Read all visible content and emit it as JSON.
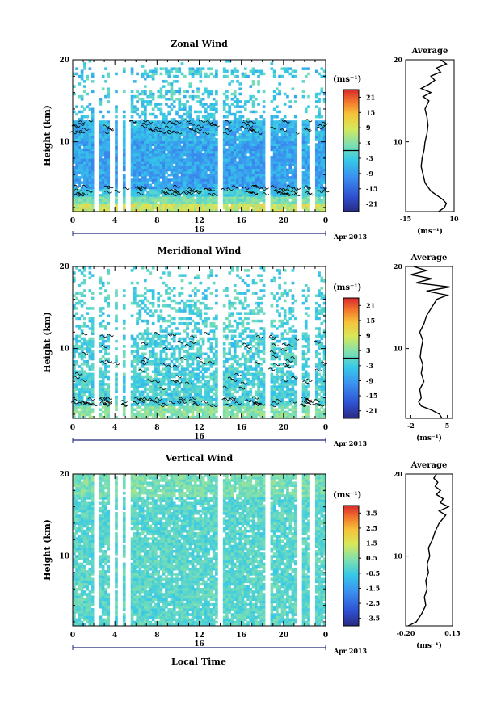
{
  "figure": {
    "xlabel": "Local Time",
    "date_label": "Apr 2013",
    "day_label": "16",
    "colorbar_unit": "(ms⁻¹)",
    "avg_title": "Average",
    "avg_xlabel": "(ms⁻¹)"
  },
  "chart_data": [
    {
      "type": "heatmap",
      "title": "Zonal Wind",
      "ylabel": "Height (km)",
      "xlabel": "",
      "x_range": [
        0,
        24
      ],
      "x_ticks": [
        "0",
        "4",
        "8",
        "12",
        "16",
        "20",
        "0"
      ],
      "y_range": [
        1.5,
        20
      ],
      "y_ticks": [
        "10",
        "20"
      ],
      "colorbar": {
        "range": [
          -24,
          24
        ],
        "ticks": [
          "21",
          "15",
          "9",
          "3",
          "-3",
          "-9",
          "-15",
          "-21"
        ],
        "zero_line": true
      },
      "field_description": "westward (negative) winds -6 to -12 m/s between 5 and 12 km, positive near surface, sparse coverage above 16 km",
      "data_gaps_hours": [
        2.3,
        3.8,
        4.5,
        5.3,
        14.0,
        18.5,
        21.5,
        22.8
      ],
      "average_profile": {
        "title": "Average",
        "xlim": [
          -15,
          10
        ],
        "x_ticks": [
          "-15",
          "10"
        ],
        "y_ticks": [
          "10",
          "20"
        ],
        "height_km": [
          1.5,
          2,
          2.5,
          3,
          3.5,
          4,
          5,
          6,
          7,
          8,
          9,
          10,
          11,
          12,
          13,
          14,
          15,
          15.5,
          16,
          16.5,
          17,
          17.5,
          18,
          18.5,
          19,
          19.5,
          20
        ],
        "speed": [
          2,
          5,
          6,
          4,
          1,
          -2,
          -5,
          -6,
          -7,
          -6.5,
          -5.5,
          -5,
          -4,
          -3.5,
          -4,
          -5,
          -3,
          -6,
          -2,
          -7,
          -3,
          0,
          -2,
          3,
          1,
          6,
          3
        ]
      }
    },
    {
      "type": "heatmap",
      "title": "Meridional Wind",
      "ylabel": "Height (km)",
      "xlabel": "",
      "x_range": [
        0,
        24
      ],
      "x_ticks": [
        "0",
        "4",
        "8",
        "12",
        "16",
        "20",
        "0"
      ],
      "y_range": [
        1.5,
        20
      ],
      "y_ticks": [
        "10",
        "20"
      ],
      "colorbar": {
        "range": [
          -24,
          24
        ],
        "ticks": [
          "21",
          "15",
          "9",
          "3",
          "-3",
          "-9",
          "-15",
          "-21"
        ],
        "zero_line": true
      },
      "field_description": "weak winds -6 to +3 m/s, mostly near zero, scattered coverage above 12 km",
      "data_gaps_hours": [
        2.3,
        3.8,
        4.5,
        5.3,
        14.0,
        18.5,
        21.5,
        22.8
      ],
      "average_profile": {
        "title": "Average",
        "xlim": [
          -3,
          6
        ],
        "x_ticks": [
          "-2",
          "5"
        ],
        "y_ticks": [
          "10",
          "20"
        ],
        "height_km": [
          1.5,
          2,
          2.5,
          3,
          3.5,
          4,
          5,
          6,
          7,
          8,
          9,
          10,
          11,
          12,
          13,
          14,
          15,
          16,
          16.5,
          17,
          17.5,
          18,
          18.5,
          19,
          19.5,
          20
        ],
        "speed": [
          4,
          3.5,
          2,
          0,
          -0.5,
          0,
          -0.3,
          0.5,
          0,
          0.3,
          -0.2,
          0,
          0.3,
          -0.3,
          0.5,
          1,
          2,
          3,
          5,
          1,
          5.5,
          -1,
          2,
          -2,
          1,
          -1.5
        ]
      }
    },
    {
      "type": "heatmap",
      "title": "Vertical Wind",
      "ylabel": "Height (km)",
      "xlabel": "Local Time",
      "x_range": [
        0,
        24
      ],
      "x_ticks": [
        "0",
        "4",
        "8",
        "12",
        "16",
        "20",
        "0"
      ],
      "y_range": [
        1.5,
        20
      ],
      "y_ticks": [
        "10",
        "20"
      ],
      "colorbar": {
        "range": [
          -4,
          4
        ],
        "ticks": [
          "3.5",
          "2.5",
          "1.5",
          "0.5",
          "-0.5",
          "-1.5",
          "-2.5",
          "-3.5"
        ],
        "zero_line": false
      },
      "field_description": "near-zero vertical velocity -0.5 to 0.5 m/s, slightly positive aloft",
      "data_gaps_hours": [
        2.3,
        3.8,
        4.5,
        5.3,
        14.0,
        18.5,
        21.5,
        22.8
      ],
      "average_profile": {
        "title": "Average",
        "xlim": [
          -0.2,
          0.15
        ],
        "x_ticks": [
          "-0.20",
          "0.15"
        ],
        "y_ticks": [
          "10",
          "20"
        ],
        "height_km": [
          1.5,
          2,
          3,
          4,
          5,
          6,
          7,
          8,
          9,
          10,
          11,
          12,
          13,
          14,
          15,
          15.5,
          16,
          16.5,
          17,
          17.5,
          18,
          18.5,
          19,
          19.5,
          20
        ],
        "speed": [
          -0.18,
          -0.12,
          -0.08,
          -0.05,
          -0.06,
          -0.04,
          -0.05,
          -0.03,
          -0.04,
          -0.02,
          -0.03,
          0.0,
          0.02,
          0.05,
          0.1,
          0.05,
          0.12,
          0.06,
          0.08,
          0.03,
          0.06,
          0.02,
          0.04,
          0.01,
          0.03
        ]
      }
    }
  ]
}
